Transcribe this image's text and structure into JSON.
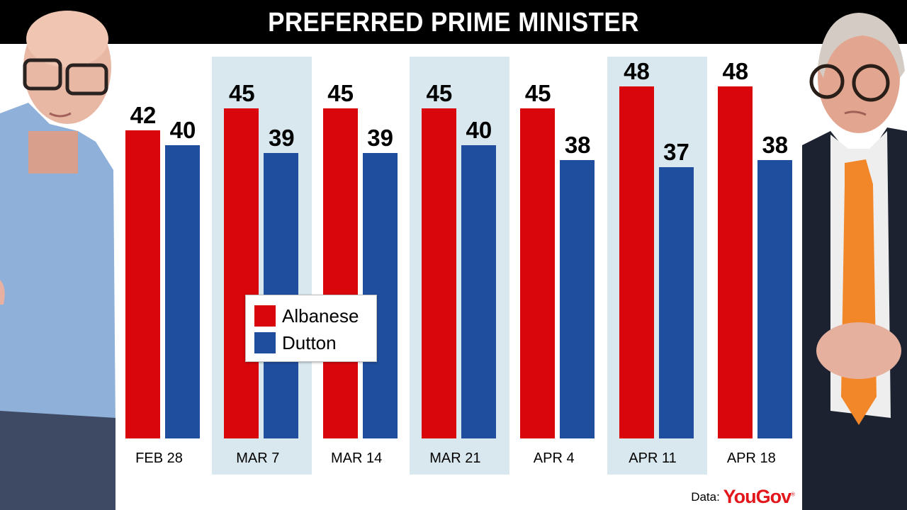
{
  "header": {
    "title": "PREFERRED PRIME MINISTER"
  },
  "legend": {
    "items": [
      {
        "label": "Albanese",
        "color": "#d9060c"
      },
      {
        "label": "Dutton",
        "color": "#1f4e9e"
      }
    ]
  },
  "source": {
    "prefix": "Data:",
    "brand": "YouGov",
    "brand_mark": "®"
  },
  "colors": {
    "albanese": "#d9060c",
    "dutton": "#1f4e9e",
    "panel_shade": "#d8e8ee",
    "title_bar": "#000000",
    "brand": "#e3161b"
  },
  "photos": {
    "left": {
      "subject": "Dutton",
      "description": "bald man with glasses in light blue shirt"
    },
    "right": {
      "subject": "Albanese",
      "description": "man with glasses in dark suit and orange tie"
    }
  },
  "chart_data": {
    "type": "bar",
    "title": "PREFERRED PRIME MINISTER",
    "categories": [
      "FEB 28",
      "MAR 7",
      "MAR 14",
      "MAR 21",
      "APR 4",
      "APR 11",
      "APR 18"
    ],
    "series": [
      {
        "name": "Albanese",
        "values": [
          42,
          45,
          45,
          45,
          45,
          48,
          48
        ]
      },
      {
        "name": "Dutton",
        "values": [
          40,
          39,
          39,
          40,
          38,
          37,
          38
        ]
      }
    ],
    "xlabel": "",
    "ylabel": "",
    "grid": false,
    "data_labels": true,
    "legend_position": "inside-left",
    "source": "Data: YouGov"
  }
}
